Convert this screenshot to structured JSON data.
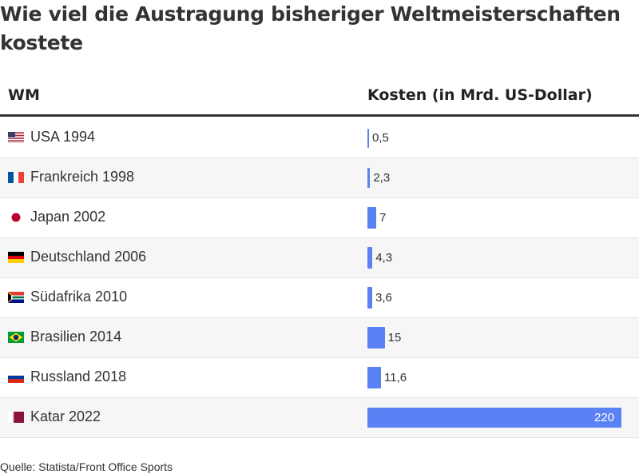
{
  "title": "Wie viel die Austragung bisheriger Weltmeisterschaften kostete",
  "header": {
    "col1": "WM",
    "col2": "Kosten (in Mrd. US-Dollar)"
  },
  "colors": {
    "bar": "#5b82f5",
    "text": "#333333"
  },
  "chart_data": {
    "type": "bar",
    "orientation": "horizontal",
    "categories": [
      "USA 1994",
      "Frankreich 1998",
      "Japan 2002",
      "Deutschland 2006",
      "Südafrika 2010",
      "Brasilien 2014",
      "Russland 2018",
      "Katar 2022"
    ],
    "values": [
      0.5,
      2.3,
      7,
      4.3,
      3.6,
      15,
      11.6,
      220
    ],
    "value_labels": [
      "0,5",
      "2,3",
      "7",
      "4,3",
      "3,6",
      "15",
      "11,6",
      "220"
    ],
    "flags": [
      "usa-flag",
      "france-flag",
      "japan-flag",
      "germany-flag",
      "south-africa-flag",
      "brazil-flag",
      "russia-flag",
      "qatar-flag"
    ],
    "xlim": [
      0,
      220
    ],
    "xlabel": "Kosten (in Mrd. US-Dollar)",
    "ylabel": "WM"
  },
  "source": "Quelle: Statista/Front Office Sports"
}
